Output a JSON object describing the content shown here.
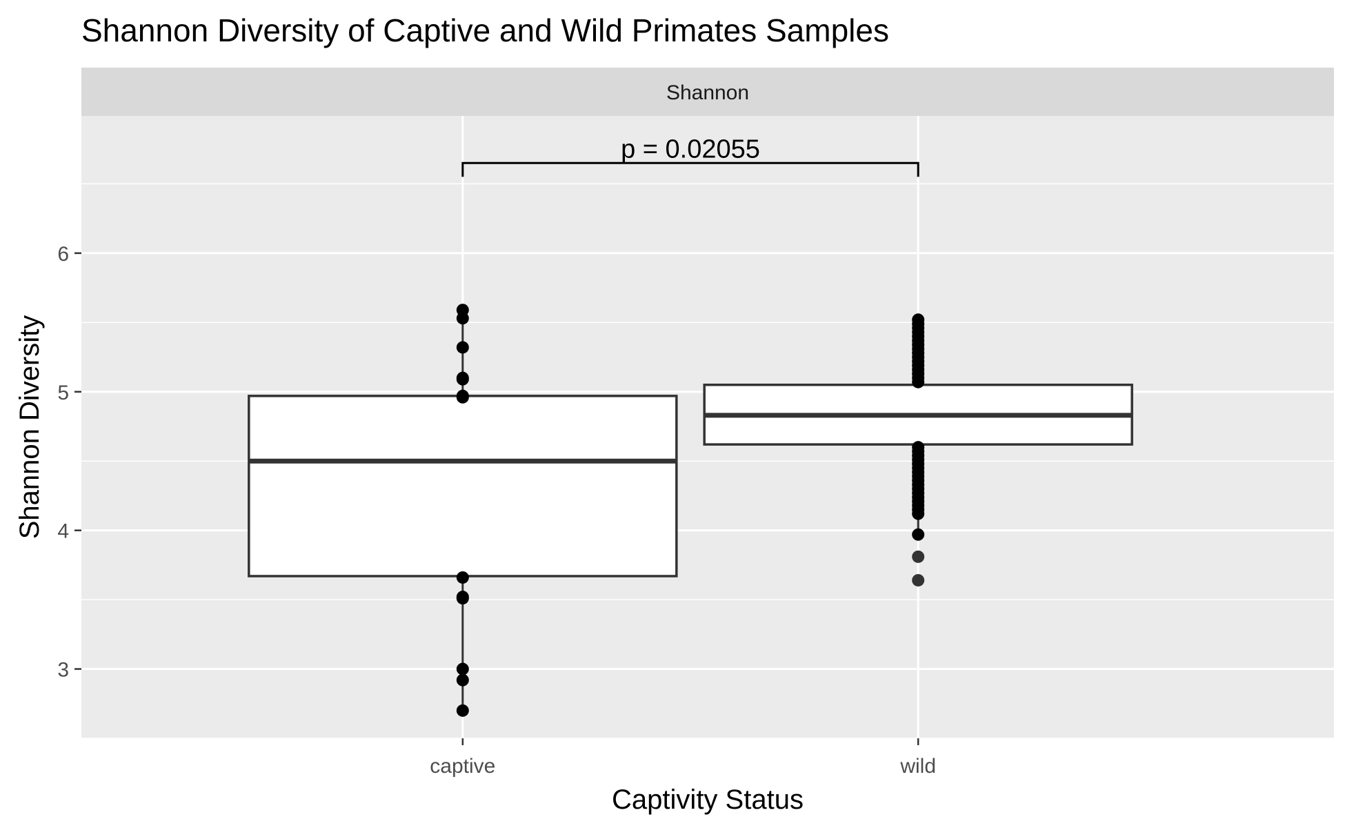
{
  "chart_data": {
    "type": "box",
    "title": "Shannon Diversity of Captive and Wild Primates Samples",
    "facet_label": "Shannon",
    "xlabel": "Captivity Status",
    "ylabel": "Shannon Diversity",
    "categories": [
      "captive",
      "wild"
    ],
    "ylim": [
      2.5,
      6.99
    ],
    "y_ticks": [
      3,
      4,
      5,
      6
    ],
    "grid": true,
    "legend": "none",
    "boxes": [
      {
        "category": "captive",
        "whisker_low": 2.7,
        "q1": 3.67,
        "median": 4.5,
        "q3": 4.97,
        "whisker_high": 5.59,
        "points": [
          5.59,
          5.53,
          5.32,
          5.1,
          5.09,
          4.97,
          4.96,
          3.66,
          3.52,
          3.51,
          3.0,
          2.92,
          2.7
        ],
        "outliers": []
      },
      {
        "category": "wild",
        "whisker_low": 3.97,
        "q1": 4.62,
        "median": 4.83,
        "q3": 5.05,
        "whisker_high": 5.52,
        "points": [
          5.52,
          5.49,
          5.46,
          5.43,
          5.4,
          5.37,
          5.34,
          5.31,
          5.28,
          5.25,
          5.22,
          5.19,
          5.16,
          5.13,
          5.1,
          5.07,
          4.6,
          4.57,
          4.54,
          4.51,
          4.48,
          4.45,
          4.42,
          4.39,
          4.36,
          4.33,
          4.3,
          4.27,
          4.24,
          4.21,
          4.18,
          4.15,
          4.12,
          3.97
        ],
        "outliers": [
          3.81,
          3.64
        ]
      }
    ],
    "annotation": {
      "text": "p = 0.02055",
      "from": "captive",
      "to": "wild",
      "y": 6.65
    },
    "colors": {
      "panel_bg": "#ebebeb",
      "strip_bg": "#d9d9d9",
      "grid": "#ffffff",
      "box_fill": "#ffffff",
      "box_line": "#333333",
      "point": "#000000",
      "outlier": "#333333"
    }
  }
}
